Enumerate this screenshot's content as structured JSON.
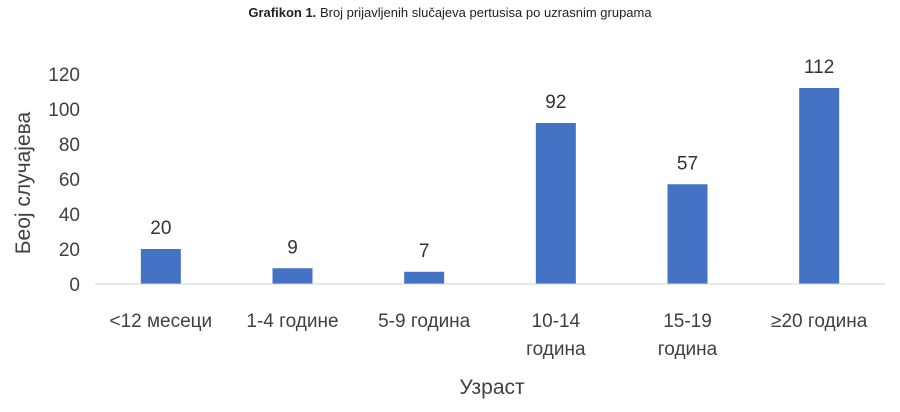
{
  "figure": {
    "caption_label": "Grafikon 1.",
    "caption_text": "Broj prijavljenih slučajeva pertusisa po uzrasnim grupama"
  },
  "chart_data": {
    "type": "bar",
    "categories": [
      "<12 месеци",
      "1-4 године",
      "5-9  година",
      "10-14 година",
      "15-19 година",
      "≥20 година"
    ],
    "category_lines": [
      [
        "<12 месеци"
      ],
      [
        "1-4 године"
      ],
      [
        "5-9  година"
      ],
      [
        "10-14",
        "година"
      ],
      [
        "15-19",
        "година"
      ],
      [
        "≥20 година"
      ]
    ],
    "values": [
      20,
      9,
      7,
      92,
      57,
      112
    ],
    "data_labels": [
      "20",
      "9",
      "7",
      "92",
      "57",
      "112"
    ],
    "xlabel": "Узраст",
    "ylabel": "Беој случајева",
    "ylim": [
      0,
      120
    ],
    "yticks": [
      0,
      20,
      40,
      60,
      80,
      100,
      120
    ],
    "grid": false,
    "bar_color": "#4472c4"
  }
}
